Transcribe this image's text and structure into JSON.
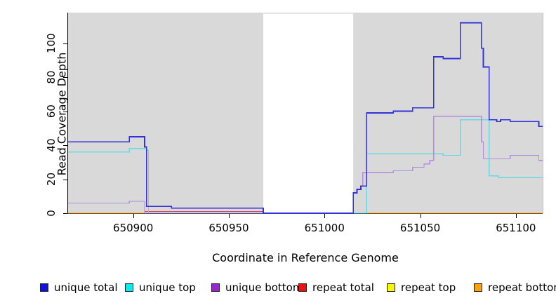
{
  "chart_data": {
    "type": "line",
    "subtype": "step-coverage-plot",
    "title": "",
    "xlabel": "Coordinate in Reference Genome",
    "ylabel": "Read Coverage Depth",
    "xlim": [
      650866,
      651114
    ],
    "ylim": [
      0,
      118
    ],
    "x_ticks": [
      650900,
      650950,
      651000,
      651050,
      651100
    ],
    "y_ticks": [
      0,
      20,
      40,
      60,
      80,
      100
    ],
    "grid": "off",
    "legend_position": "bottom",
    "plot_background": "#d9d9d9",
    "masked_region": {
      "start": 650968,
      "end": 651015,
      "color": "#ffffff"
    },
    "axis_color": "#000000",
    "series": [
      {
        "name": "unique total",
        "swatch_color": "#1212dd",
        "line_color": "#3232d8",
        "points": [
          [
            650866,
            42
          ],
          [
            650898,
            45
          ],
          [
            650906,
            39
          ],
          [
            650907,
            4
          ],
          [
            650920,
            3
          ],
          [
            650968,
            0
          ],
          [
            651015,
            12
          ],
          [
            651017,
            14
          ],
          [
            651019,
            16
          ],
          [
            651022,
            59
          ],
          [
            651036,
            60
          ],
          [
            651046,
            62
          ],
          [
            651057,
            92
          ],
          [
            651062,
            91
          ],
          [
            651071,
            112
          ],
          [
            651082,
            97
          ],
          [
            651083,
            86
          ],
          [
            651086,
            55
          ],
          [
            651090,
            54
          ],
          [
            651092,
            55
          ],
          [
            651097,
            54
          ],
          [
            651112,
            51
          ]
        ]
      },
      {
        "name": "unique top",
        "swatch_color": "#00eef5",
        "line_color": "#68d9e2",
        "points": [
          [
            650866,
            36
          ],
          [
            650898,
            38
          ],
          [
            650907,
            37
          ],
          [
            650908,
            0
          ],
          [
            651022,
            35
          ],
          [
            651062,
            34
          ],
          [
            651071,
            55
          ],
          [
            651086,
            22
          ],
          [
            651091,
            21
          ]
        ]
      },
      {
        "name": "unique bottom",
        "swatch_color": "#9a26d8",
        "line_color": "#b18ce0",
        "points": [
          [
            650866,
            6
          ],
          [
            650898,
            7
          ],
          [
            650906,
            0
          ],
          [
            651015,
            12
          ],
          [
            651017,
            14
          ],
          [
            651019,
            16
          ],
          [
            651020,
            24
          ],
          [
            651036,
            25
          ],
          [
            651046,
            27
          ],
          [
            651052,
            29
          ],
          [
            651055,
            31
          ],
          [
            651057,
            57
          ],
          [
            651082,
            42
          ],
          [
            651083,
            32
          ],
          [
            651097,
            34
          ],
          [
            651112,
            31
          ]
        ]
      },
      {
        "name": "repeat total",
        "swatch_color": "#ee1111",
        "line_color": "#cc4466",
        "points": [
          [
            650866,
            0
          ],
          [
            650906,
            1
          ],
          [
            650968,
            0
          ]
        ]
      },
      {
        "name": "repeat top",
        "swatch_color": "#f8f800",
        "line_color": "#f0f000",
        "points": [
          [
            650866,
            0
          ]
        ]
      },
      {
        "name": "repeat bottom",
        "swatch_color": "#ffa010",
        "line_color": "#ff9a00",
        "points": [
          [
            650866,
            0
          ]
        ]
      }
    ],
    "draw_order": [
      "repeat total",
      "repeat top",
      "repeat bottom",
      "unique top",
      "unique bottom",
      "unique total"
    ]
  }
}
